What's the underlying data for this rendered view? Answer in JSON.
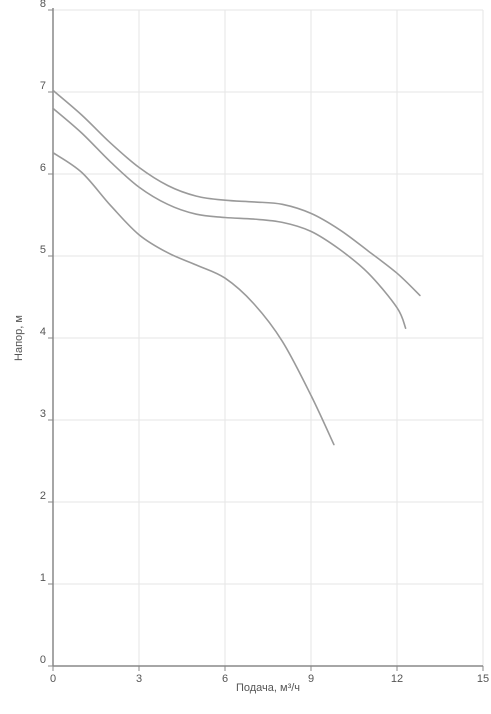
{
  "chart_data": {
    "type": "line",
    "xlabel": "Подача, м³/ч",
    "ylabel": "Напор, м",
    "xlim": [
      0,
      15
    ],
    "ylim": [
      0,
      8
    ],
    "x_ticks": [
      0,
      3,
      6,
      9,
      12,
      15
    ],
    "y_ticks": [
      0,
      1,
      2,
      3,
      4,
      5,
      6,
      7,
      8
    ],
    "grid": true,
    "legend": "none",
    "colors": {
      "line": "#9a9a9a",
      "grid": "#e6e6e6",
      "axis": "#888888",
      "text": "#555555"
    },
    "series": [
      {
        "points": [
          [
            0,
            7.02
          ],
          [
            1,
            6.72
          ],
          [
            2,
            6.38
          ],
          [
            3,
            6.08
          ],
          [
            4,
            5.86
          ],
          [
            5,
            5.73
          ],
          [
            6,
            5.68
          ],
          [
            7,
            5.66
          ],
          [
            8,
            5.63
          ],
          [
            9,
            5.52
          ],
          [
            10,
            5.32
          ],
          [
            11,
            5.06
          ],
          [
            12,
            4.79
          ],
          [
            12.8,
            4.52
          ]
        ]
      },
      {
        "points": [
          [
            0,
            6.8
          ],
          [
            1,
            6.5
          ],
          [
            2,
            6.15
          ],
          [
            3,
            5.84
          ],
          [
            4,
            5.63
          ],
          [
            5,
            5.51
          ],
          [
            6,
            5.47
          ],
          [
            7,
            5.45
          ],
          [
            8,
            5.41
          ],
          [
            9,
            5.3
          ],
          [
            10,
            5.08
          ],
          [
            11,
            4.79
          ],
          [
            12,
            4.37
          ],
          [
            12.3,
            4.12
          ]
        ]
      },
      {
        "points": [
          [
            0,
            6.26
          ],
          [
            1,
            6.02
          ],
          [
            2,
            5.62
          ],
          [
            3,
            5.26
          ],
          [
            4,
            5.04
          ],
          [
            5,
            4.89
          ],
          [
            6,
            4.73
          ],
          [
            7,
            4.42
          ],
          [
            8,
            3.96
          ],
          [
            9,
            3.3
          ],
          [
            9.8,
            2.7
          ]
        ]
      }
    ]
  }
}
